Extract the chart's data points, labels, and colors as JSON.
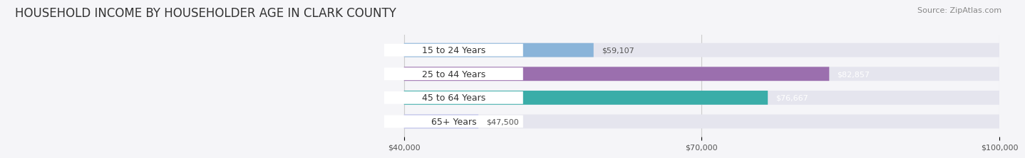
{
  "title": "HOUSEHOLD INCOME BY HOUSEHOLDER AGE IN CLARK COUNTY",
  "source": "Source: ZipAtlas.com",
  "categories": [
    "15 to 24 Years",
    "25 to 44 Years",
    "45 to 64 Years",
    "65+ Years"
  ],
  "values": [
    59107,
    82857,
    76667,
    47500
  ],
  "bar_colors": [
    "#8ab4d9",
    "#9b6fae",
    "#3aada8",
    "#b3b7e8"
  ],
  "value_labels": [
    "$59,107",
    "$82,857",
    "$76,667",
    "$47,500"
  ],
  "value_label_colors": [
    "#555555",
    "#ffffff",
    "#ffffff",
    "#555555"
  ],
  "xlim": [
    0,
    100000
  ],
  "xstart": 40000,
  "xticks": [
    40000,
    70000,
    100000
  ],
  "xtick_labels": [
    "$40,000",
    "$70,000",
    "$100,000"
  ],
  "background_color": "#f5f5f8",
  "bar_background": "#e5e5ee",
  "title_fontsize": 12,
  "source_fontsize": 8,
  "bar_label_fontsize": 9,
  "value_fontsize": 8
}
